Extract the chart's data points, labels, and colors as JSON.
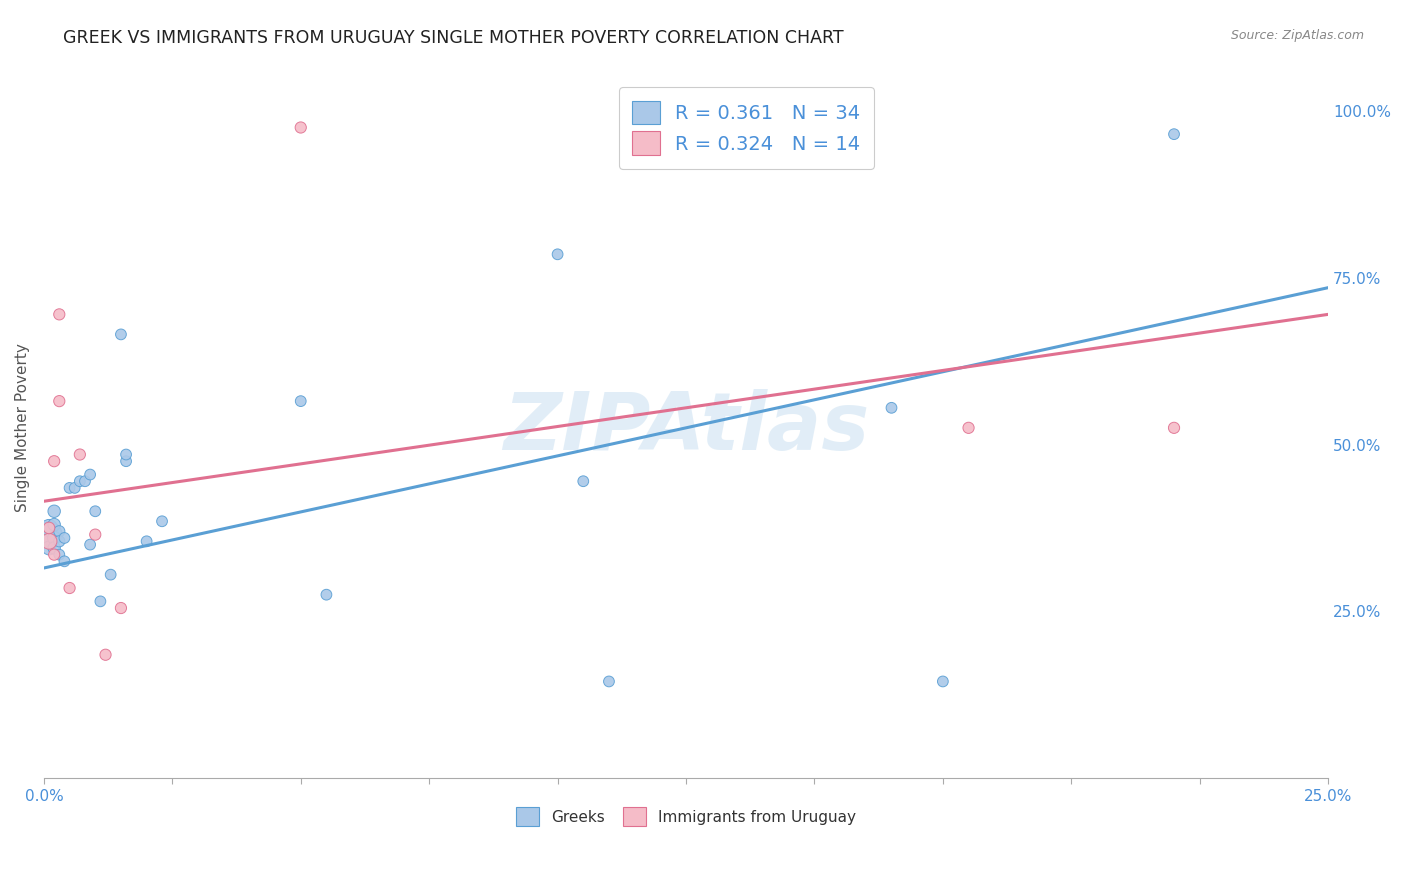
{
  "title": "GREEK VS IMMIGRANTS FROM URUGUAY SINGLE MOTHER POVERTY CORRELATION CHART",
  "source": "Source: ZipAtlas.com",
  "ylabel": "Single Mother Poverty",
  "ylabel_right_ticks": [
    "100.0%",
    "75.0%",
    "50.0%",
    "25.0%"
  ],
  "ylabel_right_vals": [
    1.0,
    0.75,
    0.5,
    0.25
  ],
  "watermark": "ZIPAtlas",
  "legend": {
    "greek_R": "0.361",
    "greek_N": "34",
    "uruguay_R": "0.324",
    "uruguay_N": "14"
  },
  "greek_color": "#aac8e8",
  "greek_edge_color": "#5a9fd4",
  "uruguay_color": "#f5bcc8",
  "uruguay_edge_color": "#e07090",
  "greek_scatter": {
    "x": [
      0.001,
      0.001,
      0.001,
      0.002,
      0.002,
      0.002,
      0.002,
      0.003,
      0.003,
      0.003,
      0.004,
      0.004,
      0.005,
      0.006,
      0.007,
      0.008,
      0.009,
      0.009,
      0.01,
      0.011,
      0.013,
      0.015,
      0.016,
      0.016,
      0.02,
      0.023,
      0.05,
      0.055,
      0.1,
      0.105,
      0.11,
      0.165,
      0.175,
      0.22
    ],
    "y": [
      0.365,
      0.375,
      0.345,
      0.36,
      0.38,
      0.4,
      0.345,
      0.37,
      0.355,
      0.335,
      0.36,
      0.325,
      0.435,
      0.435,
      0.445,
      0.445,
      0.455,
      0.35,
      0.4,
      0.265,
      0.305,
      0.665,
      0.475,
      0.485,
      0.355,
      0.385,
      0.565,
      0.275,
      0.785,
      0.445,
      0.145,
      0.555,
      0.145,
      0.965
    ],
    "sizes": [
      350,
      150,
      100,
      90,
      80,
      80,
      80,
      65,
      65,
      60,
      60,
      60,
      60,
      60,
      60,
      60,
      60,
      60,
      60,
      60,
      60,
      60,
      60,
      60,
      60,
      60,
      60,
      60,
      60,
      60,
      60,
      60,
      60,
      60
    ]
  },
  "uruguay_scatter": {
    "x": [
      0.001,
      0.001,
      0.002,
      0.002,
      0.003,
      0.003,
      0.005,
      0.007,
      0.01,
      0.012,
      0.015,
      0.05,
      0.18,
      0.22
    ],
    "y": [
      0.355,
      0.375,
      0.335,
      0.475,
      0.565,
      0.695,
      0.285,
      0.485,
      0.365,
      0.185,
      0.255,
      0.975,
      0.525,
      0.525
    ],
    "sizes": [
      130,
      70,
      65,
      65,
      65,
      65,
      65,
      65,
      65,
      65,
      65,
      65,
      65,
      65
    ]
  },
  "greek_trendline": {
    "x": [
      0.0,
      0.25
    ],
    "y": [
      0.315,
      0.735
    ]
  },
  "uruguay_trendline": {
    "x": [
      0.0,
      0.25
    ],
    "y": [
      0.415,
      0.695
    ]
  },
  "xlim": [
    0.0,
    0.25
  ],
  "ylim": [
    0.0,
    1.05
  ],
  "background_color": "#ffffff",
  "grid_color": "#dddddd",
  "title_color": "#222222",
  "axis_label_color": "#4a90d9",
  "label_fontsize": 11,
  "title_fontsize": 12.5
}
